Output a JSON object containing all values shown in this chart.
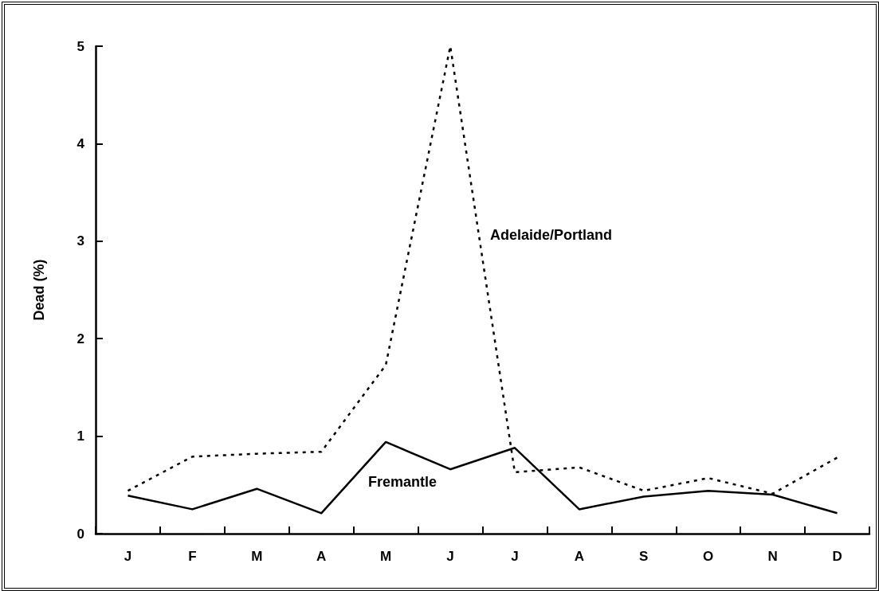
{
  "chart_data": {
    "type": "line",
    "ylabel": "Dead (%)",
    "categories": [
      "J",
      "F",
      "M",
      "A",
      "M",
      "J",
      "J",
      "A",
      "S",
      "O",
      "N",
      "D"
    ],
    "series": [
      {
        "name": "Fremantle",
        "color": "#000000",
        "line_style": "solid",
        "values": [
          0.39,
          0.25,
          0.46,
          0.21,
          0.94,
          0.66,
          0.88,
          0.25,
          0.38,
          0.44,
          0.4,
          0.21
        ]
      },
      {
        "name": "Adelaide/Portland",
        "color": "#000000",
        "line_style": "dashed",
        "values": [
          0.44,
          0.79,
          0.82,
          0.84,
          1.73,
          5.0,
          0.63,
          0.68,
          0.44,
          0.57,
          0.41,
          0.78
        ]
      }
    ],
    "ylim": [
      0,
      5
    ],
    "yticks": [
      0,
      1,
      2,
      3,
      4,
      5
    ],
    "grid": false,
    "legend": false,
    "marker": "none"
  }
}
